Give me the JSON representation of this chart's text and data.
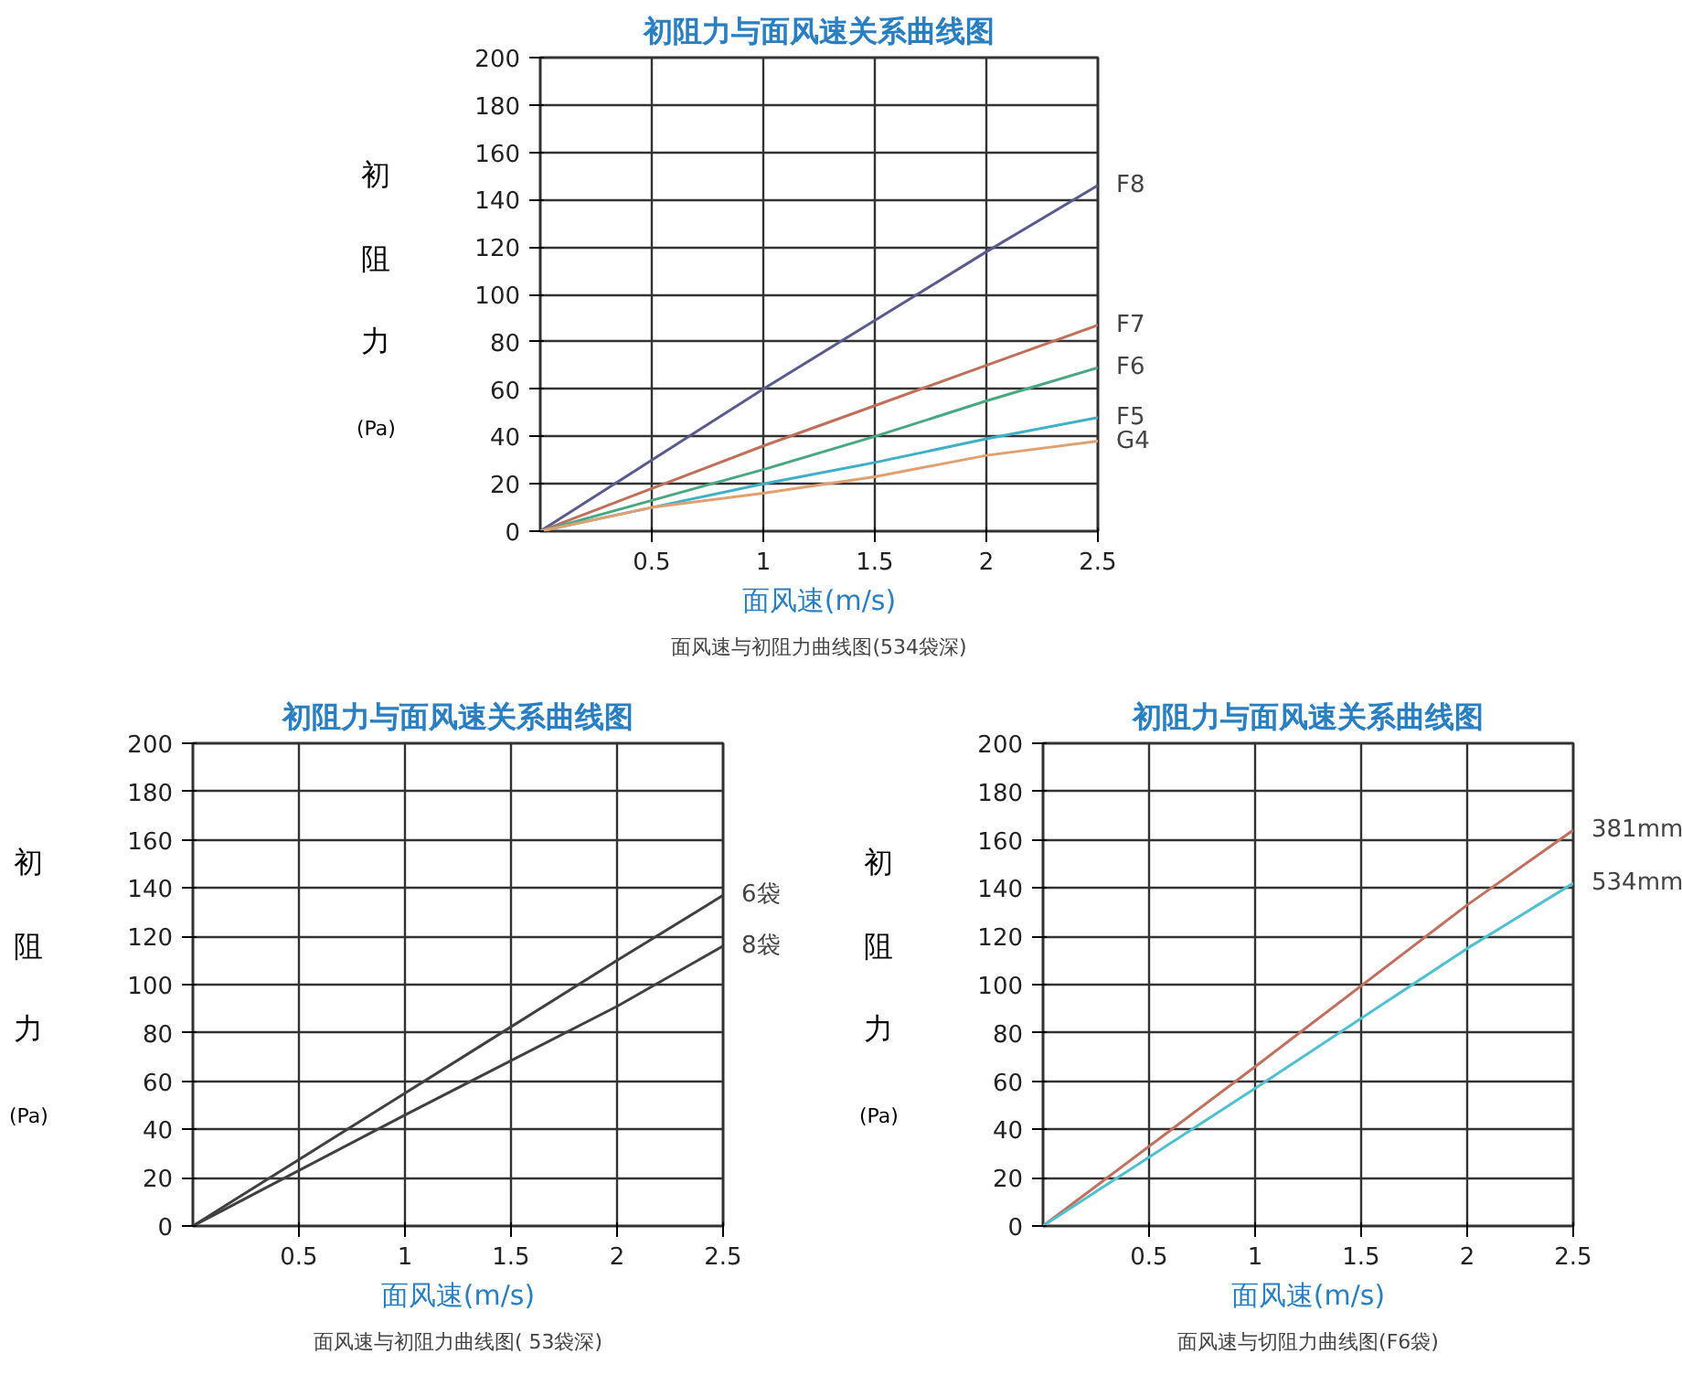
{
  "chart_data": [
    {
      "type": "line",
      "title": "初阻力与面风速关系曲线图",
      "xlabel": "面风速(m/s)",
      "ylabel": "初阻力(Pa)",
      "annotations": [
        "面风速与初阻力曲线图(534袋深)"
      ],
      "x": [
        0,
        0.5,
        1,
        1.5,
        2,
        2.5
      ],
      "xlim": [
        0,
        2.5
      ],
      "ylim": [
        0,
        200
      ],
      "xticks": [
        0.5,
        1,
        1.5,
        2,
        2.5
      ],
      "yticks": [
        0,
        20,
        40,
        60,
        80,
        100,
        120,
        140,
        160,
        180,
        200
      ],
      "grid": true,
      "series": [
        {
          "name": "F8",
          "color": "#5a5a8c",
          "values": [
            0,
            30,
            60,
            89,
            118,
            146
          ]
        },
        {
          "name": "F7",
          "color": "#c0705a",
          "values": [
            0,
            18,
            36,
            53,
            70,
            87
          ]
        },
        {
          "name": "F6",
          "color": "#4aa880",
          "values": [
            0,
            13,
            26,
            40,
            55,
            69
          ]
        },
        {
          "name": "F5",
          "color": "#40b0c8",
          "values": [
            0,
            10,
            20,
            29,
            39,
            48
          ]
        },
        {
          "name": "G4",
          "color": "#e0a070",
          "values": [
            0,
            10,
            16,
            23,
            32,
            38
          ]
        }
      ]
    },
    {
      "type": "line",
      "title": "初阻力与面风速关系曲线图",
      "xlabel": "面风速(m/s)",
      "ylabel": "初阻力(Pa)",
      "annotations": [
        "面风速与初阻力曲线图( 53袋深)"
      ],
      "x": [
        0,
        1,
        2,
        2.5
      ],
      "xlim": [
        0,
        2.5
      ],
      "ylim": [
        0,
        200
      ],
      "xticks": [
        0.5,
        1,
        1.5,
        2,
        2.5
      ],
      "yticks": [
        0,
        20,
        40,
        60,
        80,
        100,
        120,
        140,
        160,
        180,
        200
      ],
      "grid": true,
      "series": [
        {
          "name": "6袋",
          "color": "#404040",
          "values": [
            0,
            55,
            110,
            137
          ]
        },
        {
          "name": "8袋",
          "color": "#404040",
          "values": [
            0,
            46,
            91,
            116
          ]
        }
      ]
    },
    {
      "type": "line",
      "title": "初阻力与面风速关系曲线图",
      "xlabel": "面风速(m/s)",
      "ylabel": "初阻力(Pa)",
      "annotations": [
        "面风速与切阻力曲线图(F6袋)"
      ],
      "x": [
        0,
        1,
        2,
        2.5
      ],
      "xlim": [
        0,
        2.5
      ],
      "ylim": [
        0,
        200
      ],
      "xticks": [
        0.5,
        1,
        1.5,
        2,
        2.5
      ],
      "yticks": [
        0,
        20,
        40,
        60,
        80,
        100,
        120,
        140,
        160,
        180,
        200
      ],
      "grid": true,
      "series": [
        {
          "name": "381mm",
          "color": "#c07060",
          "values": [
            0,
            66,
            133,
            164
          ]
        },
        {
          "name": "534mm",
          "color": "#50c0d0",
          "values": [
            0,
            57,
            115,
            142
          ]
        }
      ]
    }
  ]
}
